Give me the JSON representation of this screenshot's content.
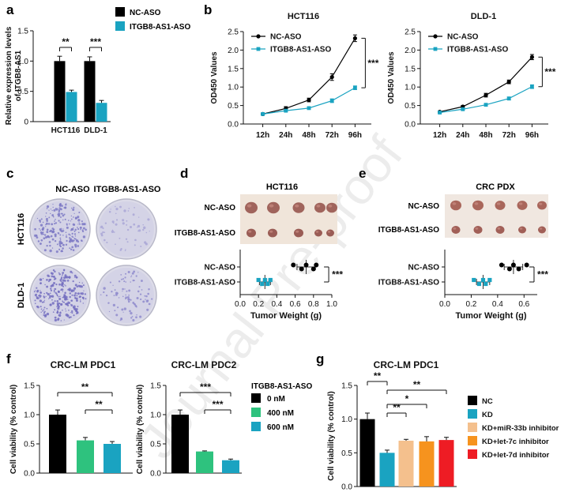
{
  "watermark": "Journal Pre-proof",
  "colors": {
    "nc": "#000000",
    "aso": "#1aa3c1",
    "green": "#2ec27e",
    "tan": "#f4c08d",
    "orange": "#f6931e",
    "red": "#ee1c24"
  },
  "panel_labels": {
    "a": "a",
    "b": "b",
    "c": "c",
    "d": "d",
    "e": "e",
    "f": "f",
    "g": "g"
  },
  "panel_c": {
    "col_labels": [
      "NC-ASO",
      "ITGB8-AS1-ASO"
    ],
    "row_labels": [
      "HCT116",
      "DLD-1"
    ]
  },
  "panel_d": {
    "title": "HCT116",
    "photo_rows": [
      "NC-ASO",
      "ITGB8-AS1-ASO"
    ]
  },
  "panel_e": {
    "title": "CRC PDX",
    "photo_rows": [
      "NC-ASO",
      "ITGB8-AS1-ASO"
    ]
  },
  "chart_data": [
    {
      "id": "a",
      "type": "bar",
      "ylabel": [
        "Relative expression levels",
        "of ITGB8-AS1"
      ],
      "categories": [
        "HCT116",
        "DLD-1"
      ],
      "ylim": [
        0,
        1.5
      ],
      "yticks": [
        "0",
        "0.5",
        "1.0",
        "1.5"
      ],
      "series": [
        {
          "name": "NC-ASO",
          "values": [
            1.0,
            1.0
          ],
          "err": [
            0.08,
            0.07
          ]
        },
        {
          "name": "ITGB8-AS1-ASO",
          "values": [
            0.49,
            0.31
          ],
          "err": [
            0.03,
            0.04
          ]
        }
      ],
      "sig": [
        "**",
        "***"
      ]
    },
    {
      "id": "b1",
      "type": "line",
      "title": "HCT116",
      "ylabel": "OD450 Values",
      "x": [
        "12h",
        "24h",
        "48h",
        "72h",
        "96h"
      ],
      "ylim": [
        0,
        2.5
      ],
      "yticks": [
        "0.0",
        "0.5",
        "1.0",
        "1.5",
        "2.0",
        "2.5"
      ],
      "series": [
        {
          "name": "NC-ASO",
          "values": [
            0.27,
            0.42,
            0.65,
            1.27,
            2.32
          ],
          "err": [
            0.02,
            0.05,
            0.05,
            0.09,
            0.09
          ]
        },
        {
          "name": "ITGB8-AS1-ASO",
          "values": [
            0.27,
            0.36,
            0.43,
            0.63,
            0.98
          ],
          "err": [
            0.02,
            0.03,
            0.03,
            0.05,
            0.05
          ]
        }
      ],
      "sig": "***"
    },
    {
      "id": "b2",
      "type": "line",
      "title": "DLD-1",
      "ylabel": "OD450 Values",
      "x": [
        "12h",
        "24h",
        "48h",
        "72h",
        "96h"
      ],
      "ylim": [
        0,
        2.5
      ],
      "yticks": [
        "0.0",
        "0.5",
        "1.0",
        "1.5",
        "2.0",
        "2.5"
      ],
      "series": [
        {
          "name": "NC-ASO",
          "values": [
            0.33,
            0.47,
            0.78,
            1.14,
            1.81
          ],
          "err": [
            0.02,
            0.03,
            0.05,
            0.05,
            0.07
          ]
        },
        {
          "name": "ITGB8-AS1-ASO",
          "values": [
            0.31,
            0.4,
            0.52,
            0.69,
            1.01
          ],
          "err": [
            0.02,
            0.02,
            0.03,
            0.04,
            0.05
          ]
        }
      ],
      "sig": "***"
    },
    {
      "id": "d",
      "type": "scatter",
      "xlabel": "Tumor Weight (g)",
      "xlim": [
        0,
        1.0
      ],
      "xticks": [
        "0.0",
        "0.2",
        "0.4",
        "0.6",
        "0.8",
        "1.0"
      ],
      "series": [
        {
          "name": "NC-ASO",
          "values": [
            0.58,
            0.67,
            0.72,
            0.8,
            0.83
          ],
          "mean": 0.72,
          "sd": 0.1
        },
        {
          "name": "ITGB8-AS1-ASO",
          "values": [
            0.2,
            0.24,
            0.27,
            0.3,
            0.33
          ],
          "mean": 0.27,
          "sd": 0.06
        }
      ],
      "sig": "***"
    },
    {
      "id": "e",
      "type": "scatter",
      "xlabel": "Tumor Weight (g)",
      "xlim": [
        0,
        0.7
      ],
      "xticks": [
        "0.0",
        "0.2",
        "0.4",
        "0.6"
      ],
      "series": [
        {
          "name": "NC-ASO",
          "values": [
            0.43,
            0.49,
            0.52,
            0.56,
            0.62
          ],
          "mean": 0.52,
          "sd": 0.07
        },
        {
          "name": "ITGB8-AS1-ASO",
          "values": [
            0.22,
            0.26,
            0.29,
            0.31,
            0.34
          ],
          "mean": 0.29,
          "sd": 0.05
        }
      ],
      "sig": "***"
    },
    {
      "id": "f1",
      "type": "bar",
      "title": "CRC-LM PDC1",
      "ylabel": "Cell viability (% control)",
      "categories": [
        "0 nM",
        "400 nM",
        "600 nM"
      ],
      "ylim": [
        0,
        1.5
      ],
      "yticks": [
        "0.0",
        "0.5",
        "1.0",
        "1.5"
      ],
      "values": [
        1.0,
        0.56,
        0.5
      ],
      "err": [
        0.08,
        0.05,
        0.04
      ],
      "sig": [
        "**",
        "**"
      ]
    },
    {
      "id": "f2",
      "type": "bar",
      "title": "CRC-LM PDC2",
      "ylabel": "Cell viability (% control)",
      "categories": [
        "0 nM",
        "400 nM",
        "600 nM"
      ],
      "ylim": [
        0,
        1.5
      ],
      "yticks": [
        "0.0",
        "0.5",
        "1.0",
        "1.5"
      ],
      "values": [
        1.0,
        0.37,
        0.22
      ],
      "err": [
        0.08,
        0.01,
        0.02
      ],
      "sig": [
        "***",
        "***"
      ],
      "legend_title": "ITGB8-AS1-ASO"
    },
    {
      "id": "g",
      "type": "bar",
      "title": "CRC-LM PDC1",
      "ylabel": "Cell viability (% control)",
      "categories": [
        "NC",
        "KD",
        "KD+miR-33b inhibitor",
        "KD+let-7c inhibitor",
        "KD+let-7d inhibitor"
      ],
      "ylim": [
        0,
        1.5
      ],
      "yticks": [
        "0.0",
        "0.5",
        "1.0",
        "1.5"
      ],
      "values": [
        1.0,
        0.5,
        0.68,
        0.67,
        0.69
      ],
      "err": [
        0.09,
        0.04,
        0.02,
        0.07,
        0.04
      ],
      "sig": [
        "**",
        "**",
        "**",
        "*"
      ]
    }
  ]
}
